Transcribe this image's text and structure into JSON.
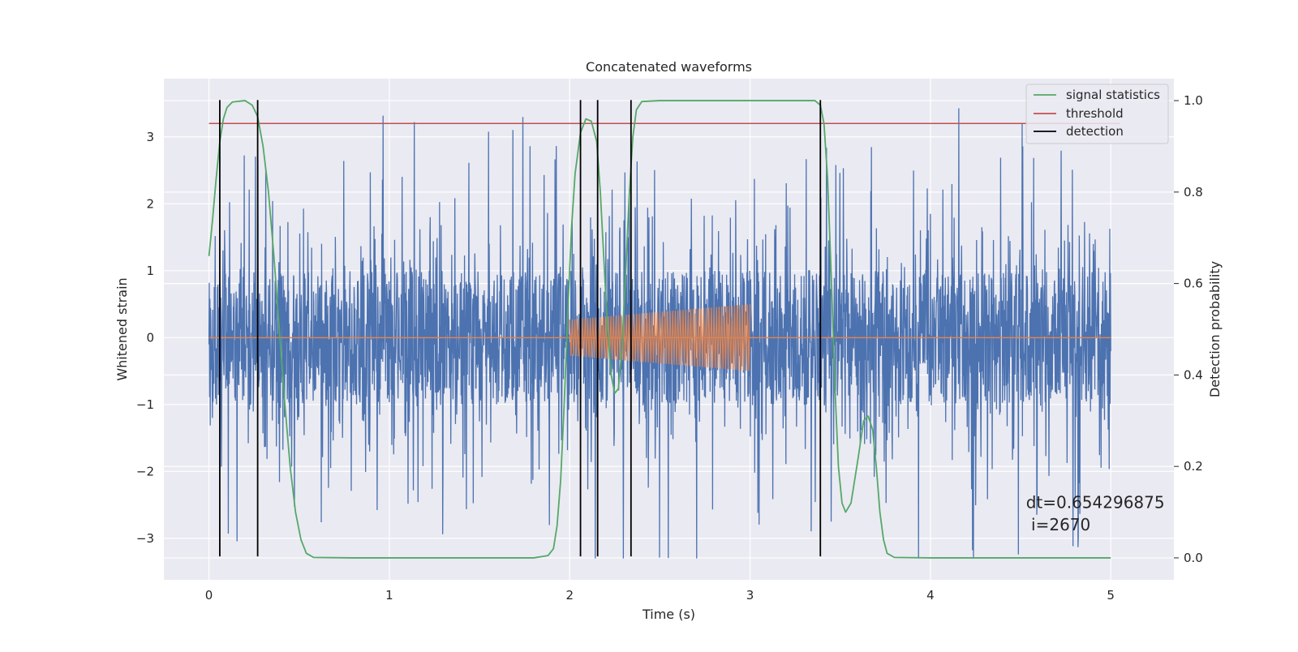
{
  "chart_data": {
    "type": "line",
    "title": "Concatenated waveforms",
    "xlabel": "Time (s)",
    "ylabel": "Whitened strain",
    "y2label": "Detection probability",
    "xlim": [
      -0.25,
      5.35
    ],
    "ylim": [
      -3.62,
      3.87
    ],
    "y2lim": [
      -0.048,
      1.048
    ],
    "xticks": [
      0,
      1,
      2,
      3,
      4,
      5
    ],
    "yticks": [
      -3,
      -2,
      -1,
      0,
      1,
      2,
      3
    ],
    "y2ticks": [
      0.0,
      0.2,
      0.4,
      0.6,
      0.8,
      1.0
    ],
    "xtick_labels": [
      "0",
      "1",
      "2",
      "3",
      "4",
      "5"
    ],
    "ytick_labels": [
      "−3",
      "−2",
      "−1",
      "0",
      "1",
      "2",
      "3"
    ],
    "y2tick_labels": [
      "0.0",
      "0.2",
      "0.4",
      "0.6",
      "0.8",
      "1.0"
    ],
    "grid": true,
    "legend_position": "top-right",
    "series": [
      {
        "name": "",
        "axis": "left",
        "kind": "noise",
        "color": "#4c72b0",
        "x_range": [
          0,
          5
        ],
        "core_amplitude": 1.0,
        "spike_amplitude": 3.5
      },
      {
        "name": "",
        "axis": "left",
        "kind": "chirp",
        "color": "#dd8452",
        "baseline_x": [
          0,
          5
        ],
        "baseline_y": 0,
        "chirp_x": [
          2.0,
          3.0
        ],
        "chirp_amplitude": [
          0.27,
          0.5
        ]
      },
      {
        "name": "signal statistics",
        "axis": "right",
        "color": "#55a868",
        "points": [
          [
            0.0,
            0.66
          ],
          [
            0.02,
            0.74
          ],
          [
            0.04,
            0.83
          ],
          [
            0.06,
            0.91
          ],
          [
            0.08,
            0.96
          ],
          [
            0.1,
            0.985
          ],
          [
            0.13,
            0.997
          ],
          [
            0.2,
            1.0
          ],
          [
            0.24,
            0.99
          ],
          [
            0.27,
            0.965
          ],
          [
            0.3,
            0.9
          ],
          [
            0.33,
            0.8
          ],
          [
            0.36,
            0.66
          ],
          [
            0.39,
            0.5
          ],
          [
            0.42,
            0.34
          ],
          [
            0.45,
            0.2
          ],
          [
            0.48,
            0.1
          ],
          [
            0.51,
            0.04
          ],
          [
            0.54,
            0.01
          ],
          [
            0.58,
            0.001
          ],
          [
            0.8,
            0.0
          ],
          [
            1.8,
            0.0
          ],
          [
            1.88,
            0.005
          ],
          [
            1.91,
            0.02
          ],
          [
            1.93,
            0.07
          ],
          [
            1.95,
            0.17
          ],
          [
            1.97,
            0.34
          ],
          [
            1.99,
            0.54
          ],
          [
            2.01,
            0.72
          ],
          [
            2.03,
            0.84
          ],
          [
            2.06,
            0.93
          ],
          [
            2.09,
            0.96
          ],
          [
            2.12,
            0.955
          ],
          [
            2.15,
            0.91
          ],
          [
            2.17,
            0.8
          ],
          [
            2.19,
            0.65
          ],
          [
            2.21,
            0.5
          ],
          [
            2.23,
            0.4
          ],
          [
            2.25,
            0.36
          ],
          [
            2.27,
            0.37
          ],
          [
            2.29,
            0.46
          ],
          [
            2.31,
            0.62
          ],
          [
            2.33,
            0.79
          ],
          [
            2.35,
            0.92
          ],
          [
            2.37,
            0.98
          ],
          [
            2.4,
            0.998
          ],
          [
            2.5,
            1.0
          ],
          [
            3.36,
            1.0
          ],
          [
            3.39,
            0.99
          ],
          [
            3.41,
            0.95
          ],
          [
            3.43,
            0.83
          ],
          [
            3.45,
            0.62
          ],
          [
            3.47,
            0.38
          ],
          [
            3.49,
            0.2
          ],
          [
            3.51,
            0.12
          ],
          [
            3.53,
            0.1
          ],
          [
            3.56,
            0.12
          ],
          [
            3.6,
            0.22
          ],
          [
            3.63,
            0.3
          ],
          [
            3.655,
            0.31
          ],
          [
            3.68,
            0.28
          ],
          [
            3.7,
            0.2
          ],
          [
            3.72,
            0.1
          ],
          [
            3.74,
            0.04
          ],
          [
            3.76,
            0.01
          ],
          [
            3.8,
            0.001
          ],
          [
            4.0,
            0.0
          ],
          [
            5.0,
            0.0
          ]
        ]
      },
      {
        "name": "threshold",
        "axis": "right",
        "color": "#c44e52",
        "x_range": [
          0,
          5.05
        ],
        "y": 0.95
      },
      {
        "name": "detection",
        "axis": "left",
        "color": "#000000",
        "x": [
          0.06,
          0.27,
          2.06,
          2.155,
          2.34,
          3.39
        ],
        "y_range": [
          -3.27,
          3.55
        ]
      }
    ],
    "annotations": [
      {
        "text": "dt=0.654296875",
        "x": 4.53,
        "y": -2.55
      },
      {
        "text": " i=2670",
        "x": 4.53,
        "y": -2.88
      }
    ]
  }
}
